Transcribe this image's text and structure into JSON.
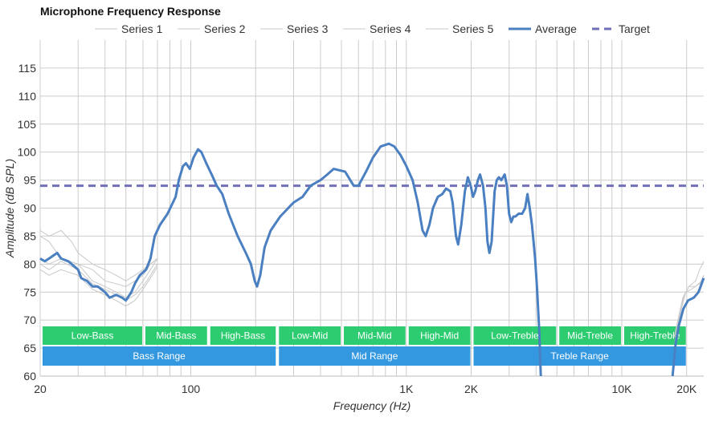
{
  "chart_data": {
    "type": "line",
    "title": "Microphone Frequency Response",
    "xlabel": "Frequency (Hz)",
    "ylabel": "Amplitude (dB SPL)",
    "x_scale": "log",
    "xlim": [
      20,
      24000
    ],
    "ylim": [
      60,
      120
    ],
    "grid": true,
    "legend_position": "top",
    "x_ticks": [
      {
        "value": 20,
        "label": "20"
      },
      {
        "value": 100,
        "label": "100"
      },
      {
        "value": 1000,
        "label": "1K"
      },
      {
        "value": 2000,
        "label": "2K"
      },
      {
        "value": 10000,
        "label": "10K"
      },
      {
        "value": 20000,
        "label": "20K"
      }
    ],
    "y_ticks": [
      60,
      65,
      70,
      75,
      80,
      85,
      90,
      95,
      100,
      105,
      110,
      115
    ],
    "colors": {
      "series": "#c8c8c8",
      "average": "#4a7fc1",
      "target": "#7070b8",
      "band_top": "#2ecc71",
      "band_bottom": "#3398e0",
      "grid": "#cccccc"
    },
    "series": [
      {
        "name": "Series 1",
        "style": "thin",
        "points": [
          [
            20,
            85
          ],
          [
            22,
            84
          ],
          [
            25,
            81
          ],
          [
            30,
            80
          ],
          [
            35,
            79
          ],
          [
            40,
            77
          ],
          [
            45,
            76.5
          ],
          [
            50,
            76
          ],
          [
            55,
            77
          ],
          [
            60,
            78
          ],
          [
            65,
            80
          ],
          [
            70,
            81
          ]
        ]
      },
      {
        "name": "Series 2",
        "style": "thin",
        "points": [
          [
            20,
            80
          ],
          [
            22,
            79
          ],
          [
            25,
            80.5
          ],
          [
            30,
            79
          ],
          [
            35,
            76.5
          ],
          [
            40,
            75.5
          ],
          [
            45,
            74.5
          ],
          [
            50,
            73.5
          ],
          [
            55,
            74.5
          ],
          [
            60,
            76
          ],
          [
            65,
            78
          ],
          [
            70,
            80
          ]
        ]
      },
      {
        "name": "Series 3",
        "style": "thin",
        "points": [
          [
            20,
            86
          ],
          [
            22,
            85
          ],
          [
            25,
            86
          ],
          [
            28,
            84
          ],
          [
            30,
            82
          ],
          [
            35,
            80
          ],
          [
            40,
            79
          ],
          [
            45,
            78
          ],
          [
            50,
            77
          ],
          [
            55,
            78
          ],
          [
            60,
            79
          ],
          [
            65,
            80
          ],
          [
            70,
            81
          ]
        ]
      },
      {
        "name": "Series 4",
        "style": "thin",
        "points": [
          [
            20,
            79
          ],
          [
            22,
            78
          ],
          [
            25,
            79
          ],
          [
            30,
            78
          ],
          [
            35,
            75.5
          ],
          [
            40,
            74.5
          ],
          [
            45,
            73.5
          ],
          [
            50,
            72.5
          ],
          [
            55,
            73.5
          ],
          [
            60,
            75.5
          ],
          [
            65,
            77.5
          ],
          [
            70,
            79.5
          ]
        ]
      },
      {
        "name": "Series 5",
        "style": "thin",
        "points": [
          [
            20,
            81
          ],
          [
            22,
            80
          ],
          [
            25,
            81
          ],
          [
            30,
            80
          ],
          [
            35,
            77
          ],
          [
            40,
            76
          ],
          [
            45,
            75
          ],
          [
            50,
            74
          ],
          [
            55,
            75
          ],
          [
            60,
            77
          ],
          [
            65,
            79
          ],
          [
            70,
            81
          ]
        ]
      },
      {
        "name": "Average",
        "style": "thick",
        "points": [
          [
            20,
            81
          ],
          [
            21,
            80.5
          ],
          [
            22,
            81
          ],
          [
            24,
            82
          ],
          [
            25,
            81
          ],
          [
            27,
            80.5
          ],
          [
            30,
            79
          ],
          [
            31,
            77.5
          ],
          [
            33,
            77
          ],
          [
            35,
            76
          ],
          [
            37,
            76
          ],
          [
            40,
            75
          ],
          [
            42,
            74
          ],
          [
            45,
            74.5
          ],
          [
            48,
            74
          ],
          [
            50,
            73.5
          ],
          [
            53,
            75
          ],
          [
            55,
            76.5
          ],
          [
            58,
            78
          ],
          [
            62,
            79
          ],
          [
            65,
            81
          ],
          [
            68,
            85
          ],
          [
            72,
            87
          ],
          [
            78,
            89
          ],
          [
            85,
            92
          ],
          [
            88,
            95
          ],
          [
            92,
            97.5
          ],
          [
            95,
            98
          ],
          [
            99,
            97
          ],
          [
            103,
            99
          ],
          [
            108,
            100.5
          ],
          [
            112,
            100
          ],
          [
            118,
            98
          ],
          [
            125,
            96
          ],
          [
            132,
            94
          ],
          [
            140,
            92.5
          ],
          [
            150,
            89
          ],
          [
            165,
            85
          ],
          [
            180,
            82
          ],
          [
            190,
            80
          ],
          [
            198,
            77
          ],
          [
            203,
            76
          ],
          [
            210,
            78
          ],
          [
            220,
            83
          ],
          [
            235,
            86
          ],
          [
            260,
            88.5
          ],
          [
            300,
            91
          ],
          [
            330,
            92
          ],
          [
            360,
            94
          ],
          [
            400,
            95
          ],
          [
            430,
            96
          ],
          [
            460,
            97
          ],
          [
            520,
            96.5
          ],
          [
            570,
            94
          ],
          [
            600,
            94
          ],
          [
            650,
            96.5
          ],
          [
            700,
            99
          ],
          [
            760,
            101
          ],
          [
            830,
            101.5
          ],
          [
            880,
            101
          ],
          [
            940,
            99.5
          ],
          [
            1000,
            97.5
          ],
          [
            1070,
            95
          ],
          [
            1130,
            91
          ],
          [
            1190,
            86
          ],
          [
            1230,
            85
          ],
          [
            1280,
            87
          ],
          [
            1330,
            90
          ],
          [
            1400,
            92
          ],
          [
            1470,
            92.5
          ],
          [
            1530,
            93.5
          ],
          [
            1600,
            93
          ],
          [
            1640,
            91
          ],
          [
            1700,
            85
          ],
          [
            1740,
            83.5
          ],
          [
            1800,
            87
          ],
          [
            1870,
            93
          ],
          [
            1930,
            95.5
          ],
          [
            1990,
            94
          ],
          [
            2040,
            92
          ],
          [
            2090,
            93
          ],
          [
            2150,
            95
          ],
          [
            2200,
            96
          ],
          [
            2270,
            94
          ],
          [
            2330,
            90
          ],
          [
            2380,
            84
          ],
          [
            2430,
            82
          ],
          [
            2490,
            84
          ],
          [
            2570,
            93
          ],
          [
            2630,
            95
          ],
          [
            2690,
            95.5
          ],
          [
            2760,
            95
          ],
          [
            2860,
            96
          ],
          [
            2930,
            94
          ],
          [
            3000,
            89
          ],
          [
            3070,
            87.5
          ],
          [
            3140,
            88.5
          ],
          [
            3210,
            88.5
          ],
          [
            3320,
            89
          ],
          [
            3450,
            89
          ],
          [
            3560,
            90
          ],
          [
            3650,
            92.5
          ],
          [
            3740,
            90
          ],
          [
            3830,
            87
          ],
          [
            3960,
            81
          ],
          [
            4040,
            76
          ],
          [
            4140,
            68
          ],
          [
            4210,
            60
          ]
        ],
        "tail_points": [
          [
            17200,
            60
          ],
          [
            17800,
            66
          ],
          [
            18400,
            69
          ],
          [
            19300,
            72
          ],
          [
            20300,
            73.5
          ],
          [
            21600,
            74
          ],
          [
            22700,
            75
          ],
          [
            24000,
            77.5
          ]
        ]
      },
      {
        "name": "Target",
        "style": "dashed",
        "points": [
          [
            20,
            94
          ],
          [
            24000,
            94
          ]
        ]
      }
    ],
    "extra_traces": [
      [
        [
          17500,
          67
        ],
        [
          18200,
          70
        ],
        [
          19200,
          74
        ],
        [
          20500,
          76
        ],
        [
          22000,
          77
        ],
        [
          23000,
          79
        ],
        [
          24000,
          80.5
        ]
      ],
      [
        [
          17600,
          66
        ],
        [
          18400,
          70
        ],
        [
          19500,
          74.5
        ],
        [
          20500,
          76
        ],
        [
          22000,
          76
        ],
        [
          23500,
          77
        ],
        [
          24000,
          78
        ]
      ],
      [
        [
          17700,
          67
        ],
        [
          18600,
          71
        ],
        [
          19800,
          75
        ],
        [
          21000,
          75.5
        ],
        [
          23000,
          76.5
        ],
        [
          24000,
          78
        ]
      ]
    ],
    "bands_top": [
      {
        "label": "Low-Bass",
        "from": 20,
        "to": 60
      },
      {
        "label": "Mid-Bass",
        "from": 60,
        "to": 120
      },
      {
        "label": "High-Bass",
        "from": 120,
        "to": 250
      },
      {
        "label": "Low-Mid",
        "from": 250,
        "to": 500
      },
      {
        "label": "Mid-Mid",
        "from": 500,
        "to": 1000
      },
      {
        "label": "High-Mid",
        "from": 1000,
        "to": 2000
      },
      {
        "label": "Low-Treble",
        "from": 2000,
        "to": 5000
      },
      {
        "label": "Mid-Treble",
        "from": 5000,
        "to": 10000
      },
      {
        "label": "High-Treble",
        "from": 10000,
        "to": 20000
      }
    ],
    "bands_bottom": [
      {
        "label": "Bass Range",
        "from": 20,
        "to": 250
      },
      {
        "label": "Mid Range",
        "from": 250,
        "to": 2000
      },
      {
        "label": "Treble Range",
        "from": 2000,
        "to": 20000
      }
    ]
  }
}
